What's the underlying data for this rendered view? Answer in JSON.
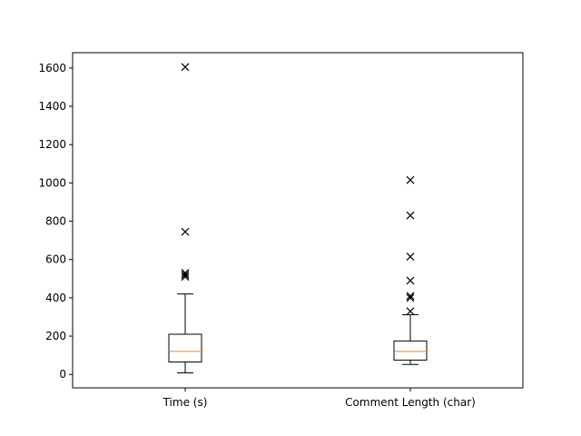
{
  "chart_data": {
    "type": "boxplot",
    "title": "",
    "xlabel": "",
    "ylabel": "",
    "ylim": [
      -70,
      1680
    ],
    "yticks": [
      0,
      200,
      400,
      600,
      800,
      1000,
      1200,
      1400,
      1600
    ],
    "categories": [
      "Time (s)",
      "Comment Length (char)"
    ],
    "boxes": [
      {
        "category": "Time (s)",
        "whisker_low": 8,
        "q1": 65,
        "median": 120,
        "q3": 210,
        "whisker_high": 420,
        "outliers": [
          510,
          520,
          530,
          745,
          1605
        ]
      },
      {
        "category": "Comment Length (char)",
        "whisker_low": 52,
        "q1": 75,
        "median": 120,
        "q3": 175,
        "whisker_high": 312,
        "outliers": [
          330,
          400,
          410,
          490,
          615,
          830,
          1015
        ]
      }
    ],
    "outlier_marker": "x",
    "colors": {
      "box": "#000000",
      "median": "#ff7f0e",
      "outlier": "#000000"
    },
    "grid": false
  }
}
